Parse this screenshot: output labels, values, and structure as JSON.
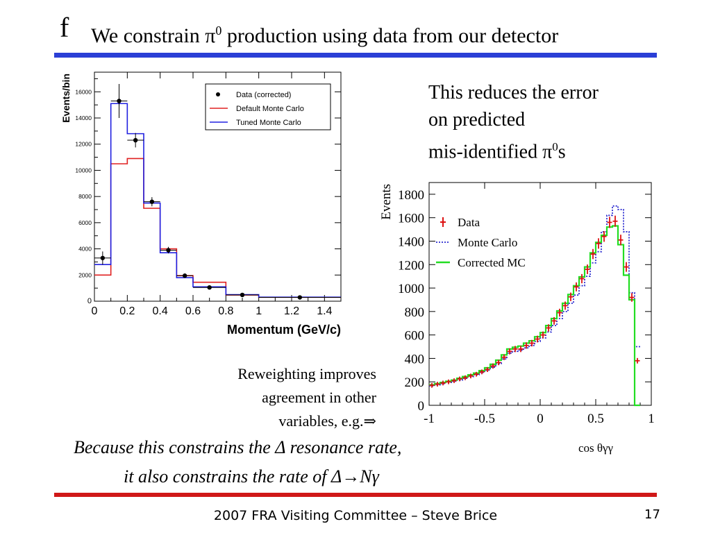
{
  "slide": {
    "logo": "f",
    "title_pre": "We constrain π",
    "title_sup": "0",
    "title_post": " production using data from our detector",
    "side_line1": "This reduces the error",
    "side_line2": "on predicted",
    "side_line3_pre": "mis-identified π",
    "side_line3_sup": "0",
    "side_line3_post": "s",
    "rw_line1": "Reweighting improves",
    "rw_line2": "agreement in other",
    "rw_line3": "variables, e.g.⇒",
    "italic_line1": "Because this constrains the Δ resonance rate,",
    "italic_line2": "it also constrains the rate of Δ→Nγ",
    "footer": "2007 FRA Visiting Committee – Steve Brice",
    "page_number": "17",
    "colors": {
      "blue_rule": "#2b3fd6",
      "red_rule": "#d01818"
    }
  },
  "chart_data": [
    {
      "type": "histogram",
      "xlabel": "Momentum (GeV/c)",
      "ylabel": "Events/bin",
      "xlim": [
        0,
        1.5
      ],
      "ylim": [
        0,
        17500
      ],
      "x_ticks": [
        "0",
        "0.2",
        "0.4",
        "0.6",
        "0.8",
        "1",
        "1.2",
        "1.4"
      ],
      "y_ticks": [
        "2000",
        "4000",
        "6000",
        "8000",
        "10000",
        "12000",
        "14000",
        "16000"
      ],
      "grid": false,
      "legend_position": "top-right",
      "bin_edges": [
        0,
        0.1,
        0.2,
        0.3,
        0.4,
        0.5,
        0.6,
        0.8,
        1.0,
        1.5
      ],
      "series": [
        {
          "name": "Data (corrected)",
          "style": "points",
          "color": "#000000",
          "x": [
            0.05,
            0.15,
            0.25,
            0.35,
            0.45,
            0.55,
            0.7,
            0.9,
            1.25
          ],
          "y": [
            3300,
            15300,
            12300,
            7600,
            3900,
            1950,
            1050,
            480,
            290
          ],
          "yerr": [
            500,
            1300,
            550,
            350,
            250,
            170,
            100,
            60,
            40
          ]
        },
        {
          "name": "Default Monte Carlo",
          "style": "step",
          "color": "#e02020",
          "values": [
            2000,
            10500,
            10900,
            7100,
            4000,
            1950,
            1450,
            470,
            300
          ]
        },
        {
          "name": "Tuned Monte Carlo",
          "style": "step",
          "color": "#2020e0",
          "values": [
            2800,
            15100,
            12800,
            7500,
            3700,
            1800,
            1100,
            500,
            310
          ]
        }
      ]
    },
    {
      "type": "histogram",
      "xlabel": "cos θγγ",
      "ylabel": "Events",
      "xlim": [
        -1,
        1
      ],
      "ylim": [
        0,
        1900
      ],
      "x_ticks": [
        "-1",
        "-0.5",
        "0",
        "0.5",
        "1"
      ],
      "y_ticks": [
        "0",
        "200",
        "400",
        "600",
        "800",
        "1000",
        "1200",
        "1400",
        "1600",
        "1800"
      ],
      "grid": false,
      "legend_position": "top-left",
      "bin_width": 0.05,
      "series": [
        {
          "name": "Data",
          "style": "points",
          "color": "#dd1111",
          "values": [
            170,
            180,
            190,
            200,
            210,
            225,
            235,
            250,
            265,
            285,
            305,
            335,
            365,
            410,
            460,
            480,
            480,
            510,
            530,
            565,
            600,
            660,
            720,
            790,
            850,
            925,
            1010,
            1080,
            1160,
            1290,
            1380,
            1440,
            1560,
            1570,
            1410,
            1180,
            920,
            380
          ]
        },
        {
          "name": "Monte Carlo",
          "style": "dotted-step",
          "color": "#2a2ad0",
          "values": [
            165,
            175,
            185,
            195,
            205,
            215,
            230,
            245,
            260,
            280,
            300,
            325,
            355,
            395,
            445,
            460,
            470,
            490,
            510,
            545,
            575,
            625,
            680,
            740,
            800,
            870,
            940,
            1020,
            1100,
            1215,
            1310,
            1480,
            1620,
            1700,
            1670,
            1480,
            960,
            500
          ]
        },
        {
          "name": "Corrected MC",
          "style": "step",
          "color": "#22dd22",
          "values": [
            175,
            185,
            195,
            205,
            215,
            230,
            245,
            260,
            275,
            295,
            320,
            350,
            385,
            430,
            480,
            495,
            505,
            530,
            550,
            585,
            620,
            680,
            740,
            805,
            870,
            945,
            1020,
            1095,
            1180,
            1300,
            1390,
            1450,
            1520,
            1530,
            1370,
            1110,
            900,
            0
          ]
        }
      ]
    }
  ]
}
